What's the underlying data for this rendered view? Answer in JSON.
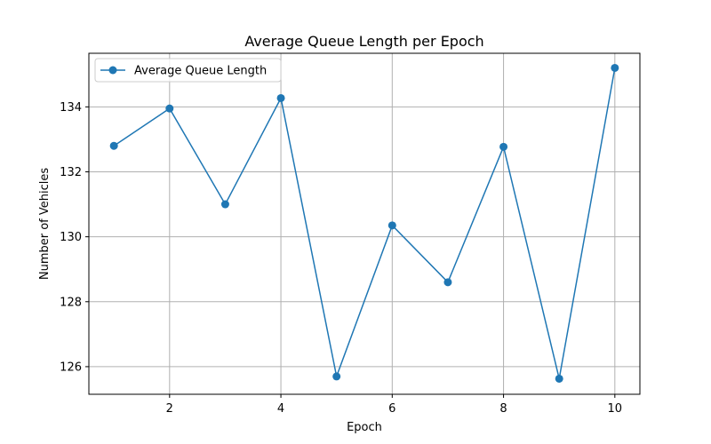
{
  "chart_data": {
    "type": "line",
    "title": "Average Queue Length per Epoch",
    "xlabel": "Epoch",
    "ylabel": "Number of Vehicles",
    "xlim": [
      0.55,
      10.45
    ],
    "ylim": [
      125.15,
      135.65
    ],
    "xticks": [
      2,
      4,
      6,
      8,
      10
    ],
    "yticks": [
      126,
      128,
      130,
      132,
      134
    ],
    "grid": true,
    "legend_position": "top-left",
    "series": [
      {
        "name": "Average Queue Length",
        "color": "#1f77b4",
        "marker": "circle",
        "x": [
          1,
          2,
          3,
          4,
          5,
          6,
          7,
          8,
          9,
          10
        ],
        "y": [
          132.8,
          133.95,
          131.0,
          134.27,
          125.7,
          130.35,
          128.6,
          132.77,
          125.63,
          135.2
        ]
      }
    ]
  }
}
